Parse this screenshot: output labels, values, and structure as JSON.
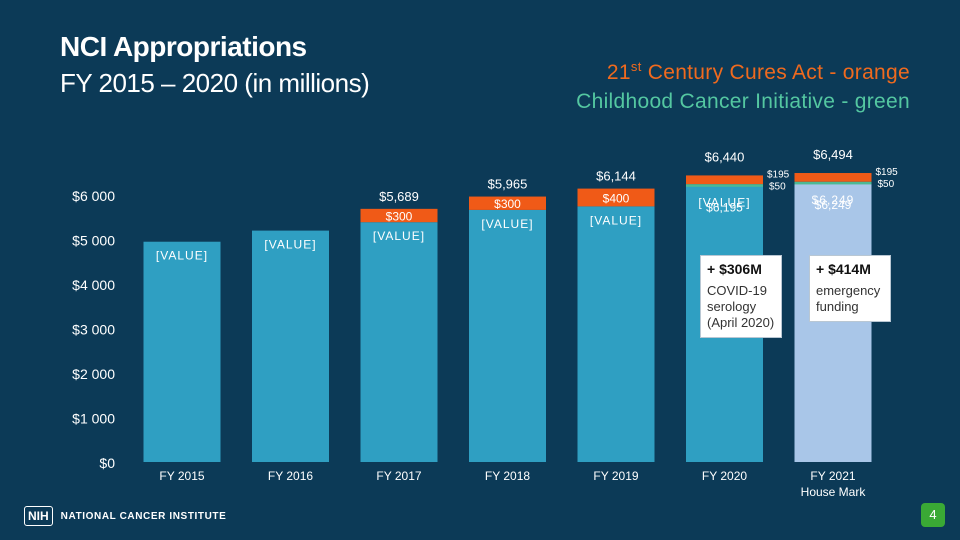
{
  "header": {
    "title_line1": "NCI Appropriations",
    "title_line2": "FY 2015 – 2020 (in millions)",
    "legend_line1_prefix": "21",
    "legend_line1_sup": "st",
    "legend_line1_rest": " Century Cures Act - orange",
    "legend_line2": "Childhood Cancer Initiative - green"
  },
  "colors": {
    "background": "#0c3a57",
    "base": "#2f9fc2",
    "house_mark": "#a9c6e8",
    "cures": "#f05a17",
    "childhood": "#4cb894",
    "covid": "#f8fbff"
  },
  "chart_data": {
    "type": "bar",
    "ylim": [
      0,
      6000
    ],
    "y_ticks": [
      {
        "value": 0,
        "label": "$0"
      },
      {
        "value": 1000,
        "label": "$1 000"
      },
      {
        "value": 2000,
        "label": "$2 000"
      },
      {
        "value": 3000,
        "label": "$3 000"
      },
      {
        "value": 4000,
        "label": "$4 000"
      },
      {
        "value": 5000,
        "label": "$5 000"
      },
      {
        "value": 6000,
        "label": "$6 000"
      }
    ],
    "categories": [
      "FY 2015",
      "FY 2016",
      "FY 2017",
      "FY 2018",
      "FY 2019",
      "FY 2020",
      "FY 2021\nHouse Mark"
    ],
    "bars": [
      {
        "category": "FY 2015",
        "base": 4950,
        "base_label": "[VALUE]",
        "cures": 0,
        "childhood": 0,
        "total_label": ""
      },
      {
        "category": "FY 2016",
        "base": 5200,
        "base_label": "[VALUE]",
        "cures": 0,
        "childhood": 0,
        "total_label": ""
      },
      {
        "category": "FY 2017",
        "base": 5389,
        "base_label": "[VALUE]",
        "cures": 300,
        "cures_label": "$300",
        "childhood": 0,
        "total_label": "$5,689"
      },
      {
        "category": "FY 2018",
        "base": 5665,
        "base_label": "[VALUE]",
        "cures": 300,
        "cures_label": "$300",
        "childhood": 0,
        "total_label": "$5,965"
      },
      {
        "category": "FY 2019",
        "base": 5744,
        "base_label": "[VALUE]",
        "cures": 400,
        "cures_label": "$400",
        "childhood": 0,
        "total_label": "$6,144"
      },
      {
        "category": "FY 2020",
        "base": 6195,
        "base_label": "[VALUE]",
        "base_label_overlap": "$6,195",
        "cures": 195,
        "cures_label": "$195",
        "childhood": 50,
        "childhood_label": "$50",
        "total_label": "$6,440"
      },
      {
        "category": "FY 2021\nHouse Mark",
        "base": 6249,
        "base_label": "$6,249",
        "base_label_overlap": "$6,249",
        "cures": 195,
        "cures_label": "$195",
        "childhood": 50,
        "childhood_label": "$50",
        "total_label": "$6,494",
        "house_mark": true
      }
    ]
  },
  "callouts": [
    {
      "big": "+ $306M",
      "small": "COVID-19 serology (April 2020)"
    },
    {
      "big": "+ $414M",
      "small": "emergency funding"
    }
  ],
  "footer": {
    "nih": "NIH",
    "institute": "NATIONAL CANCER INSTITUTE",
    "page": "4"
  }
}
